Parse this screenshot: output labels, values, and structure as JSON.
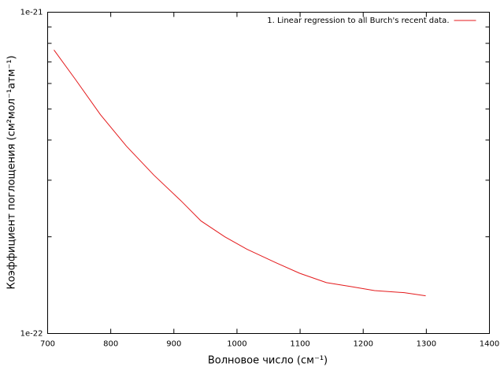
{
  "chart_data": {
    "type": "line",
    "xlabel": "Волновое число (см⁻¹)",
    "ylabel": "Коэффициент поглощения (см²мол⁻¹атм⁻¹)",
    "xlim": [
      700,
      1400
    ],
    "xticks": [
      700,
      800,
      900,
      1000,
      1100,
      1200,
      1300,
      1400
    ],
    "ylim": [
      1e-22,
      1e-21
    ],
    "log_y": true,
    "yticks": [
      {
        "value": 1e-22,
        "label": "1e-22"
      },
      {
        "value": 1e-21,
        "label": "1e-21"
      }
    ],
    "yminorticks": [
      2e-22,
      3e-22,
      4e-22,
      5e-22,
      6e-22,
      7e-22,
      8e-22,
      9e-22
    ],
    "legend_position": "top-right",
    "series": [
      {
        "name": "1. Linear regression to all Burch's recent data.",
        "color": "#e41a1c",
        "x": [
          710,
          743.7,
          783.6,
          824.8,
          868.4,
          912,
          943,
          980.7,
          1015.7,
          1061.9,
          1099.3,
          1141.7,
          1180.4,
          1218,
          1265,
          1299
        ],
        "values": [
          7.63e-22,
          6.19e-22,
          4.8e-22,
          3.83e-22,
          3.11e-22,
          2.58e-22,
          2.24e-22,
          2e-22,
          1.83e-22,
          1.66e-22,
          1.54e-22,
          1.44e-22,
          1.4e-22,
          1.36e-22,
          1.34e-22,
          1.31e-22
        ]
      }
    ]
  }
}
